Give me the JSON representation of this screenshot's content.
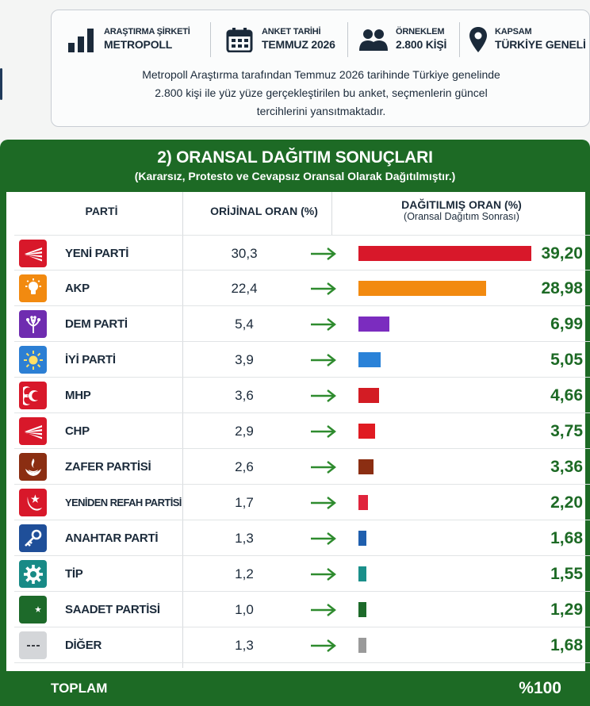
{
  "info": {
    "items": [
      {
        "label": "ARAŞTIRMA ŞİRKETİ",
        "value": "METROPOLL",
        "icon": "bar-chart-icon"
      },
      {
        "label": "ANKET TARİHİ",
        "value": "TEMMUZ 2026",
        "icon": "calendar-icon"
      },
      {
        "label": "ÖRNEKLEM",
        "value": "2.800 KİŞİ",
        "icon": "people-icon"
      },
      {
        "label": "KAPSAM",
        "value": "TÜRKİYE GENELİ",
        "icon": "map-pin-icon"
      }
    ],
    "description_lines": [
      "Metropoll Araştırma tarafından Temmuz 2026 tarihinde Türkiye genelinde",
      "2.800 kişi ile yüz yüze gerçekleştirilen bu anket, seçmenlerin güncel",
      "tercihlerini yansıtmaktadır."
    ]
  },
  "panel": {
    "title": "2) ORANSAL DAĞITIM SONUÇLARI",
    "subtitle": "(Kararsız, Protesto ve Cevapsız Oransal Olarak Dağıtılmıştır.)",
    "col_party": "PARTİ",
    "col_original": "ORİJİNAL ORAN (%)",
    "col_distributed": "DAĞITILMIŞ ORAN (%)",
    "col_distributed_sub": "(Oransal Dağıtım Sonrası)",
    "total_label": "TOPLAM",
    "total_value": "%100"
  },
  "colors": {
    "brand_green": "#1d6a25",
    "arrow_green": "#2e8b2e"
  },
  "chart_data": {
    "type": "bar",
    "title": "2) ORANSAL DAĞITIM SONUÇLARI",
    "subtitle": "(Kararsız, Protesto ve Cevapsız Oransal Olarak Dağıtılmıştır.)",
    "categories": [
      "YENİ PARTİ",
      "AKP",
      "DEM PARTİ",
      "İYİ PARTİ",
      "MHP",
      "CHP",
      "ZAFER PARTİSİ",
      "YENİDEN REFAH PARTİSİ",
      "ANAHTAR PARTİ",
      "TİP",
      "SAADET PARTİSİ",
      "DİĞER"
    ],
    "original_labels": [
      "30,3",
      "22,4",
      "5,4",
      "3,9",
      "3,6",
      "2,9",
      "2,6",
      "1,7",
      "1,3",
      "1,2",
      "1,0",
      "1,3"
    ],
    "distributed_labels": [
      "39,20",
      "28,98",
      "6,99",
      "5,05",
      "4,66",
      "3,75",
      "3,36",
      "2,20",
      "1,68",
      "1,55",
      "1,29",
      "1,68"
    ],
    "series": [
      {
        "name": "ORİJİNAL ORAN (%)",
        "values": [
          30.3,
          22.4,
          5.4,
          3.9,
          3.6,
          2.9,
          2.6,
          1.7,
          1.3,
          1.2,
          1.0,
          1.3
        ]
      },
      {
        "name": "DAĞITILMIŞ ORAN (%)",
        "values": [
          39.2,
          28.98,
          6.99,
          5.05,
          4.66,
          3.75,
          3.36,
          2.2,
          1.68,
          1.55,
          1.29,
          1.68
        ]
      }
    ],
    "bar_colors": [
      "#d8182a",
      "#f28a10",
      "#7b2cbf",
      "#2a82d8",
      "#d31c24",
      "#e01b22",
      "#8b2e12",
      "#e0243c",
      "#1f5fae",
      "#1a8f8a",
      "#1d6a2a",
      "#9a9a9a"
    ],
    "logo_bg": [
      "#d8182a",
      "#f28a10",
      "#6f2cb0",
      "#2c7fd4",
      "#d8182a",
      "#d8182a",
      "#8b2e12",
      "#d8182a",
      "#1f4f99",
      "#188a86",
      "#1d6a2a",
      "#8e9196"
    ],
    "logo_icons": [
      "rays-icon",
      "bulb-icon",
      "tree-icon",
      "sun-icon",
      "crescents-icon",
      "rays-icon",
      "flame-icon",
      "crescent-arc-icon",
      "key-icon",
      "gear-icon",
      "crescent-star-icon",
      "dots-icon"
    ]
  }
}
